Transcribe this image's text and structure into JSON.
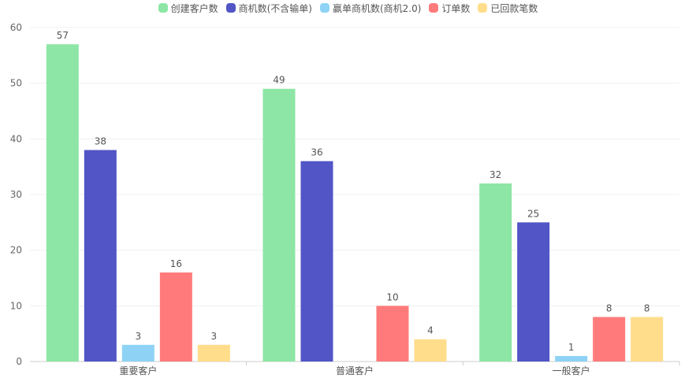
{
  "chart_data": {
    "type": "bar",
    "categories": [
      "重要客户",
      "普通客户",
      "一般客户"
    ],
    "series": [
      {
        "name": "创建客户数",
        "color": "#8de6a5",
        "values": [
          57,
          49,
          32
        ]
      },
      {
        "name": "商机数(不含输单)",
        "color": "#5155c6",
        "values": [
          38,
          36,
          25
        ]
      },
      {
        "name": "赢单商机数(商机2.0)",
        "color": "#8ed3f5",
        "values": [
          3,
          0,
          1
        ]
      },
      {
        "name": "订单数",
        "color": "#ff7b7b",
        "values": [
          16,
          10,
          8
        ]
      },
      {
        "name": "已回款笔数",
        "color": "#ffdd8a",
        "values": [
          3,
          4,
          8
        ]
      }
    ],
    "y_ticks": [
      "0",
      "10",
      "20",
      "30",
      "40",
      "50",
      "60"
    ],
    "ylim": [
      0,
      60
    ],
    "grid": true,
    "legend_position": "top-center"
  }
}
